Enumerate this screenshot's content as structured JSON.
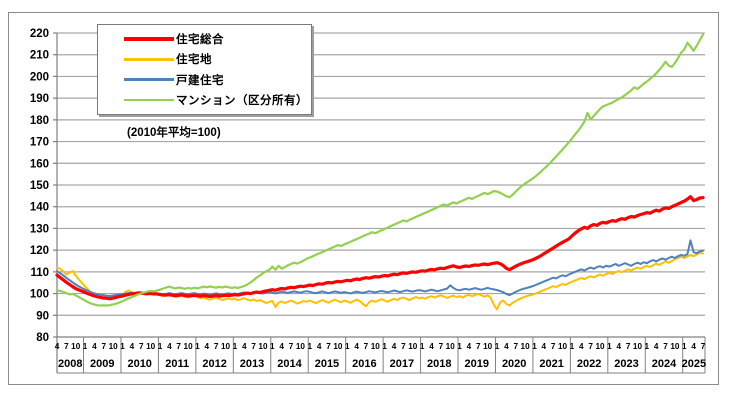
{
  "note": "(2010年平均=100)",
  "chart_data": {
    "type": "line",
    "note": "(2010年平均=100)",
    "legend_position": "top-left-inside",
    "grid": true,
    "y_axis": {
      "min": 80,
      "max": 220,
      "step": 10
    },
    "x_axis": {
      "start_year": 2008,
      "start_month": 4,
      "end_year": 2025,
      "end_month": 7,
      "frequency": "monthly",
      "month_tick_labels": [
        1,
        4,
        7,
        10
      ],
      "years": [
        "2008",
        "2009",
        "2010",
        "2011",
        "2012",
        "2013",
        "2014",
        "2015",
        "2016",
        "2017",
        "2018",
        "2019",
        "2020",
        "2021",
        "2022",
        "2023",
        "2024",
        "2025"
      ]
    },
    "colors": {
      "gridline": "#a6a6a6",
      "axis": "#808080",
      "frame": "#8c8c8c",
      "text": "#000000"
    },
    "draw_order": [
      1,
      2,
      0,
      3
    ],
    "series": [
      {
        "name": "住宅総合",
        "color": "#ff0000",
        "width": 3.2,
        "values": [
          108.5,
          107.4,
          106.3,
          105.2,
          104.2,
          103.2,
          102.3,
          101.7,
          101.1,
          100.5,
          99.9,
          99.4,
          98.9,
          98.5,
          98.2,
          98.0,
          97.8,
          97.6,
          97.9,
          98.3,
          98.6,
          98.9,
          99.3,
          99.6,
          99.9,
          100.1,
          100.3,
          100.2,
          100.0,
          99.9,
          100.1,
          100.0,
          99.8,
          99.6,
          99.4,
          99.3,
          99.5,
          99.2,
          99.0,
          99.2,
          99.4,
          99.1,
          98.9,
          99.0,
          99.2,
          99.0,
          98.8,
          99.1,
          98.9,
          98.7,
          98.9,
          99.1,
          98.8,
          99.0,
          99.2,
          99.1,
          99.3,
          99.5,
          99.3,
          99.6,
          99.9,
          100.2,
          100.0,
          100.4,
          100.7,
          100.5,
          100.9,
          101.2,
          101.5,
          101.8,
          101.5,
          102.0,
          102.4,
          102.1,
          102.6,
          102.9,
          102.7,
          103.1,
          103.4,
          103.2,
          103.6,
          103.9,
          103.7,
          104.2,
          104.5,
          104.3,
          104.8,
          105.1,
          104.9,
          105.3,
          105.6,
          105.4,
          105.8,
          106.1,
          105.9,
          106.4,
          106.7,
          106.5,
          107.0,
          107.3,
          107.1,
          107.5,
          107.8,
          107.6,
          108.0,
          108.3,
          108.1,
          108.6,
          108.9,
          108.7,
          109.2,
          109.5,
          109.3,
          109.7,
          110.0,
          109.8,
          110.2,
          110.5,
          110.3,
          110.8,
          111.1,
          110.9,
          111.4,
          111.7,
          111.5,
          112.0,
          112.4,
          112.8,
          112.3,
          112.0,
          112.4,
          112.7,
          112.5,
          112.9,
          113.2,
          113.0,
          113.4,
          113.6,
          113.3,
          113.7,
          114.0,
          114.2,
          113.8,
          112.9,
          111.6,
          111.0,
          111.8,
          112.6,
          113.3,
          113.9,
          114.4,
          114.8,
          115.3,
          115.9,
          116.6,
          117.4,
          118.3,
          119.2,
          120.1,
          121.0,
          121.9,
          122.8,
          123.6,
          124.4,
          125.2,
          126.5,
          127.8,
          128.9,
          129.8,
          130.5,
          130.0,
          131.2,
          131.8,
          131.4,
          132.3,
          132.8,
          132.5,
          133.2,
          133.6,
          133.3,
          134.0,
          134.5,
          134.2,
          135.0,
          135.5,
          135.2,
          135.9,
          136.4,
          136.8,
          137.3,
          137.0,
          137.8,
          138.4,
          138.0,
          138.9,
          139.5,
          139.2,
          140.0,
          140.6,
          141.3,
          142.0,
          142.6,
          143.5,
          144.6,
          142.8,
          143.3,
          144.0,
          144.2
        ]
      },
      {
        "name": "住宅地",
        "color": "#ffc000",
        "width": 2,
        "values": [
          112.0,
          111.4,
          110.2,
          108.8,
          109.6,
          110.4,
          108.3,
          106.5,
          104.8,
          103.2,
          101.8,
          100.5,
          99.4,
          98.6,
          98.0,
          97.5,
          97.9,
          98.4,
          97.8,
          98.2,
          98.6,
          99.2,
          100.8,
          101.4,
          100.6,
          99.8,
          100.2,
          99.6,
          100.0,
          100.4,
          99.7,
          99.3,
          99.8,
          99.4,
          98.8,
          99.2,
          99.6,
          98.9,
          98.4,
          98.8,
          99.1,
          98.5,
          98.2,
          98.6,
          98.9,
          98.4,
          97.8,
          98.2,
          97.6,
          97.2,
          97.8,
          98.1,
          97.5,
          97.0,
          97.4,
          97.8,
          97.3,
          97.6,
          97.0,
          97.4,
          97.9,
          97.2,
          96.8,
          97.3,
          96.6,
          97.0,
          96.4,
          95.6,
          96.2,
          96.6,
          93.8,
          95.8,
          96.4,
          95.6,
          96.2,
          96.8,
          96.1,
          95.4,
          96.0,
          96.6,
          96.2,
          96.8,
          96.2,
          95.6,
          96.4,
          97.0,
          96.4,
          95.8,
          96.6,
          97.2,
          96.6,
          96.0,
          96.8,
          96.4,
          95.8,
          96.6,
          97.2,
          96.6,
          95.2,
          94.2,
          96.0,
          96.8,
          96.2,
          96.8,
          97.4,
          96.8,
          96.2,
          97.0,
          97.6,
          97.0,
          97.8,
          98.2,
          97.6,
          97.0,
          97.8,
          98.4,
          97.8,
          98.2,
          97.6,
          98.4,
          98.8,
          98.2,
          98.8,
          99.2,
          98.6,
          98.0,
          98.6,
          99.0,
          98.4,
          98.8,
          98.2,
          99.0,
          99.4,
          98.8,
          99.4,
          99.8,
          99.2,
          98.6,
          99.2,
          98.0,
          94.8,
          92.7,
          96.0,
          96.8,
          95.2,
          94.5,
          95.8,
          96.6,
          97.4,
          98.0,
          98.6,
          99.0,
          99.4,
          99.8,
          100.4,
          101.0,
          101.6,
          102.2,
          102.8,
          103.4,
          103.0,
          103.8,
          104.4,
          104.0,
          104.8,
          105.4,
          106.0,
          106.6,
          107.2,
          106.6,
          107.4,
          108.0,
          107.4,
          108.2,
          108.8,
          108.2,
          109.0,
          109.6,
          109.0,
          109.8,
          110.4,
          109.8,
          110.6,
          111.2,
          110.6,
          111.4,
          112.0,
          111.4,
          112.2,
          112.8,
          112.2,
          113.0,
          113.8,
          113.2,
          114.0,
          114.8,
          114.2,
          115.0,
          115.8,
          116.4,
          117.0,
          116.4,
          117.2,
          117.8,
          117.2,
          118.0,
          118.8,
          118.4
        ]
      },
      {
        "name": "戸建住宅",
        "color": "#4f81bd",
        "width": 2,
        "values": [
          110.3,
          109.4,
          108.4,
          107.2,
          106.2,
          105.2,
          104.2,
          103.3,
          102.5,
          101.8,
          101.2,
          100.6,
          100.1,
          99.7,
          99.4,
          99.2,
          99.0,
          98.9,
          99.1,
          99.4,
          99.6,
          99.8,
          100.0,
          100.2,
          100.3,
          100.1,
          100.4,
          100.2,
          100.0,
          99.8,
          100.1,
          99.9,
          100.0,
          99.8,
          99.6,
          99.9,
          100.2,
          99.9,
          99.7,
          100.0,
          100.2,
          99.9,
          99.7,
          100.0,
          100.2,
          99.9,
          99.7,
          100.0,
          99.8,
          99.5,
          99.8,
          100.1,
          99.8,
          99.6,
          99.9,
          100.1,
          99.8,
          100.0,
          99.8,
          100.2,
          100.5,
          100.2,
          99.9,
          100.3,
          100.6,
          100.3,
          100.0,
          100.4,
          100.7,
          100.4,
          100.1,
          100.5,
          100.9,
          100.6,
          100.3,
          100.7,
          101.0,
          100.7,
          100.4,
          100.8,
          101.1,
          100.8,
          100.4,
          100.2,
          100.6,
          101.0,
          100.6,
          100.2,
          100.6,
          101.0,
          100.7,
          100.3,
          100.7,
          100.4,
          100.1,
          100.5,
          100.9,
          100.6,
          100.3,
          100.7,
          101.1,
          100.8,
          100.5,
          100.9,
          101.2,
          100.9,
          100.6,
          101.0,
          101.4,
          101.0,
          100.7,
          101.1,
          101.5,
          101.2,
          100.9,
          101.3,
          101.6,
          101.3,
          101.0,
          101.4,
          101.8,
          101.4,
          101.1,
          101.5,
          101.9,
          102.3,
          103.8,
          102.6,
          101.8,
          101.5,
          101.9,
          102.2,
          101.8,
          102.1,
          102.5,
          102.1,
          101.8,
          102.2,
          102.6,
          102.2,
          101.9,
          101.6,
          101.2,
          100.6,
          99.8,
          99.3,
          100.0,
          100.8,
          101.4,
          102.0,
          102.4,
          102.8,
          103.2,
          103.7,
          104.3,
          104.9,
          105.5,
          106.1,
          106.7,
          107.3,
          107.0,
          107.8,
          108.4,
          108.0,
          108.8,
          109.4,
          110.0,
          110.6,
          111.2,
          110.6,
          111.4,
          112.0,
          111.4,
          112.2,
          112.6,
          112.0,
          112.8,
          112.4,
          113.0,
          113.6,
          112.8,
          113.4,
          114.0,
          113.4,
          112.8,
          113.6,
          114.2,
          113.6,
          114.4,
          114.0,
          114.8,
          115.4,
          114.8,
          115.6,
          116.2,
          115.6,
          116.4,
          117.0,
          116.4,
          117.2,
          117.8,
          117.4,
          118.2,
          124.5,
          119.0,
          118.6,
          119.4,
          119.8
        ]
      },
      {
        "name": "マンション（区分所有）",
        "color": "#92d050",
        "width": 2.2,
        "values": [
          101.5,
          101.2,
          100.8,
          100.2,
          99.6,
          99.8,
          99.2,
          98.4,
          97.6,
          96.8,
          96.0,
          95.4,
          94.9,
          94.6,
          94.5,
          94.6,
          94.5,
          94.7,
          95.0,
          95.4,
          95.9,
          96.5,
          97.2,
          97.8,
          98.4,
          99.0,
          99.6,
          100.1,
          100.5,
          100.9,
          101.2,
          101.0,
          101.4,
          101.8,
          102.3,
          102.8,
          103.2,
          102.7,
          102.4,
          102.8,
          102.5,
          102.2,
          102.6,
          102.3,
          102.7,
          102.4,
          102.8,
          103.2,
          102.9,
          103.3,
          103.0,
          102.7,
          103.1,
          102.8,
          103.2,
          102.9,
          102.6,
          102.9,
          102.6,
          103.0,
          103.5,
          104.2,
          105.1,
          106.2,
          107.4,
          108.3,
          109.4,
          110.2,
          110.9,
          112.4,
          111.0,
          112.8,
          111.5,
          112.2,
          113.0,
          113.6,
          114.2,
          113.8,
          114.5,
          115.2,
          116.0,
          116.6,
          117.2,
          117.9,
          118.5,
          119.1,
          119.8,
          120.4,
          121.0,
          121.7,
          122.3,
          121.9,
          122.6,
          123.2,
          123.8,
          124.5,
          125.1,
          125.7,
          126.4,
          127.0,
          127.6,
          128.3,
          127.8,
          128.5,
          129.2,
          129.8,
          130.4,
          131.1,
          131.7,
          132.4,
          133.0,
          133.7,
          133.2,
          134.0,
          134.6,
          135.3,
          135.9,
          136.5,
          137.2,
          137.8,
          138.5,
          139.1,
          139.8,
          140.4,
          141.0,
          140.5,
          141.3,
          142.0,
          141.5,
          142.2,
          142.8,
          143.5,
          144.1,
          143.6,
          144.4,
          145.0,
          145.7,
          146.3,
          145.8,
          146.5,
          147.2,
          147.0,
          146.4,
          145.6,
          144.8,
          144.4,
          145.5,
          147.0,
          148.4,
          149.6,
          150.6,
          151.6,
          152.6,
          153.6,
          154.8,
          156.0,
          157.4,
          158.8,
          160.2,
          161.7,
          163.2,
          164.8,
          166.4,
          168.0,
          169.6,
          171.4,
          173.2,
          175.0,
          177.0,
          179.2,
          183.2,
          180.2,
          181.8,
          183.4,
          185.0,
          186.2,
          186.8,
          187.4,
          188.0,
          188.8,
          189.6,
          190.4,
          191.4,
          192.4,
          193.6,
          195.0,
          194.2,
          195.4,
          196.6,
          197.6,
          198.8,
          200.0,
          201.4,
          203.0,
          204.8,
          206.8,
          205.0,
          204.4,
          206.2,
          208.4,
          211.0,
          212.4,
          215.5,
          213.8,
          211.8,
          214.2,
          216.8,
          219.3
        ]
      }
    ]
  }
}
